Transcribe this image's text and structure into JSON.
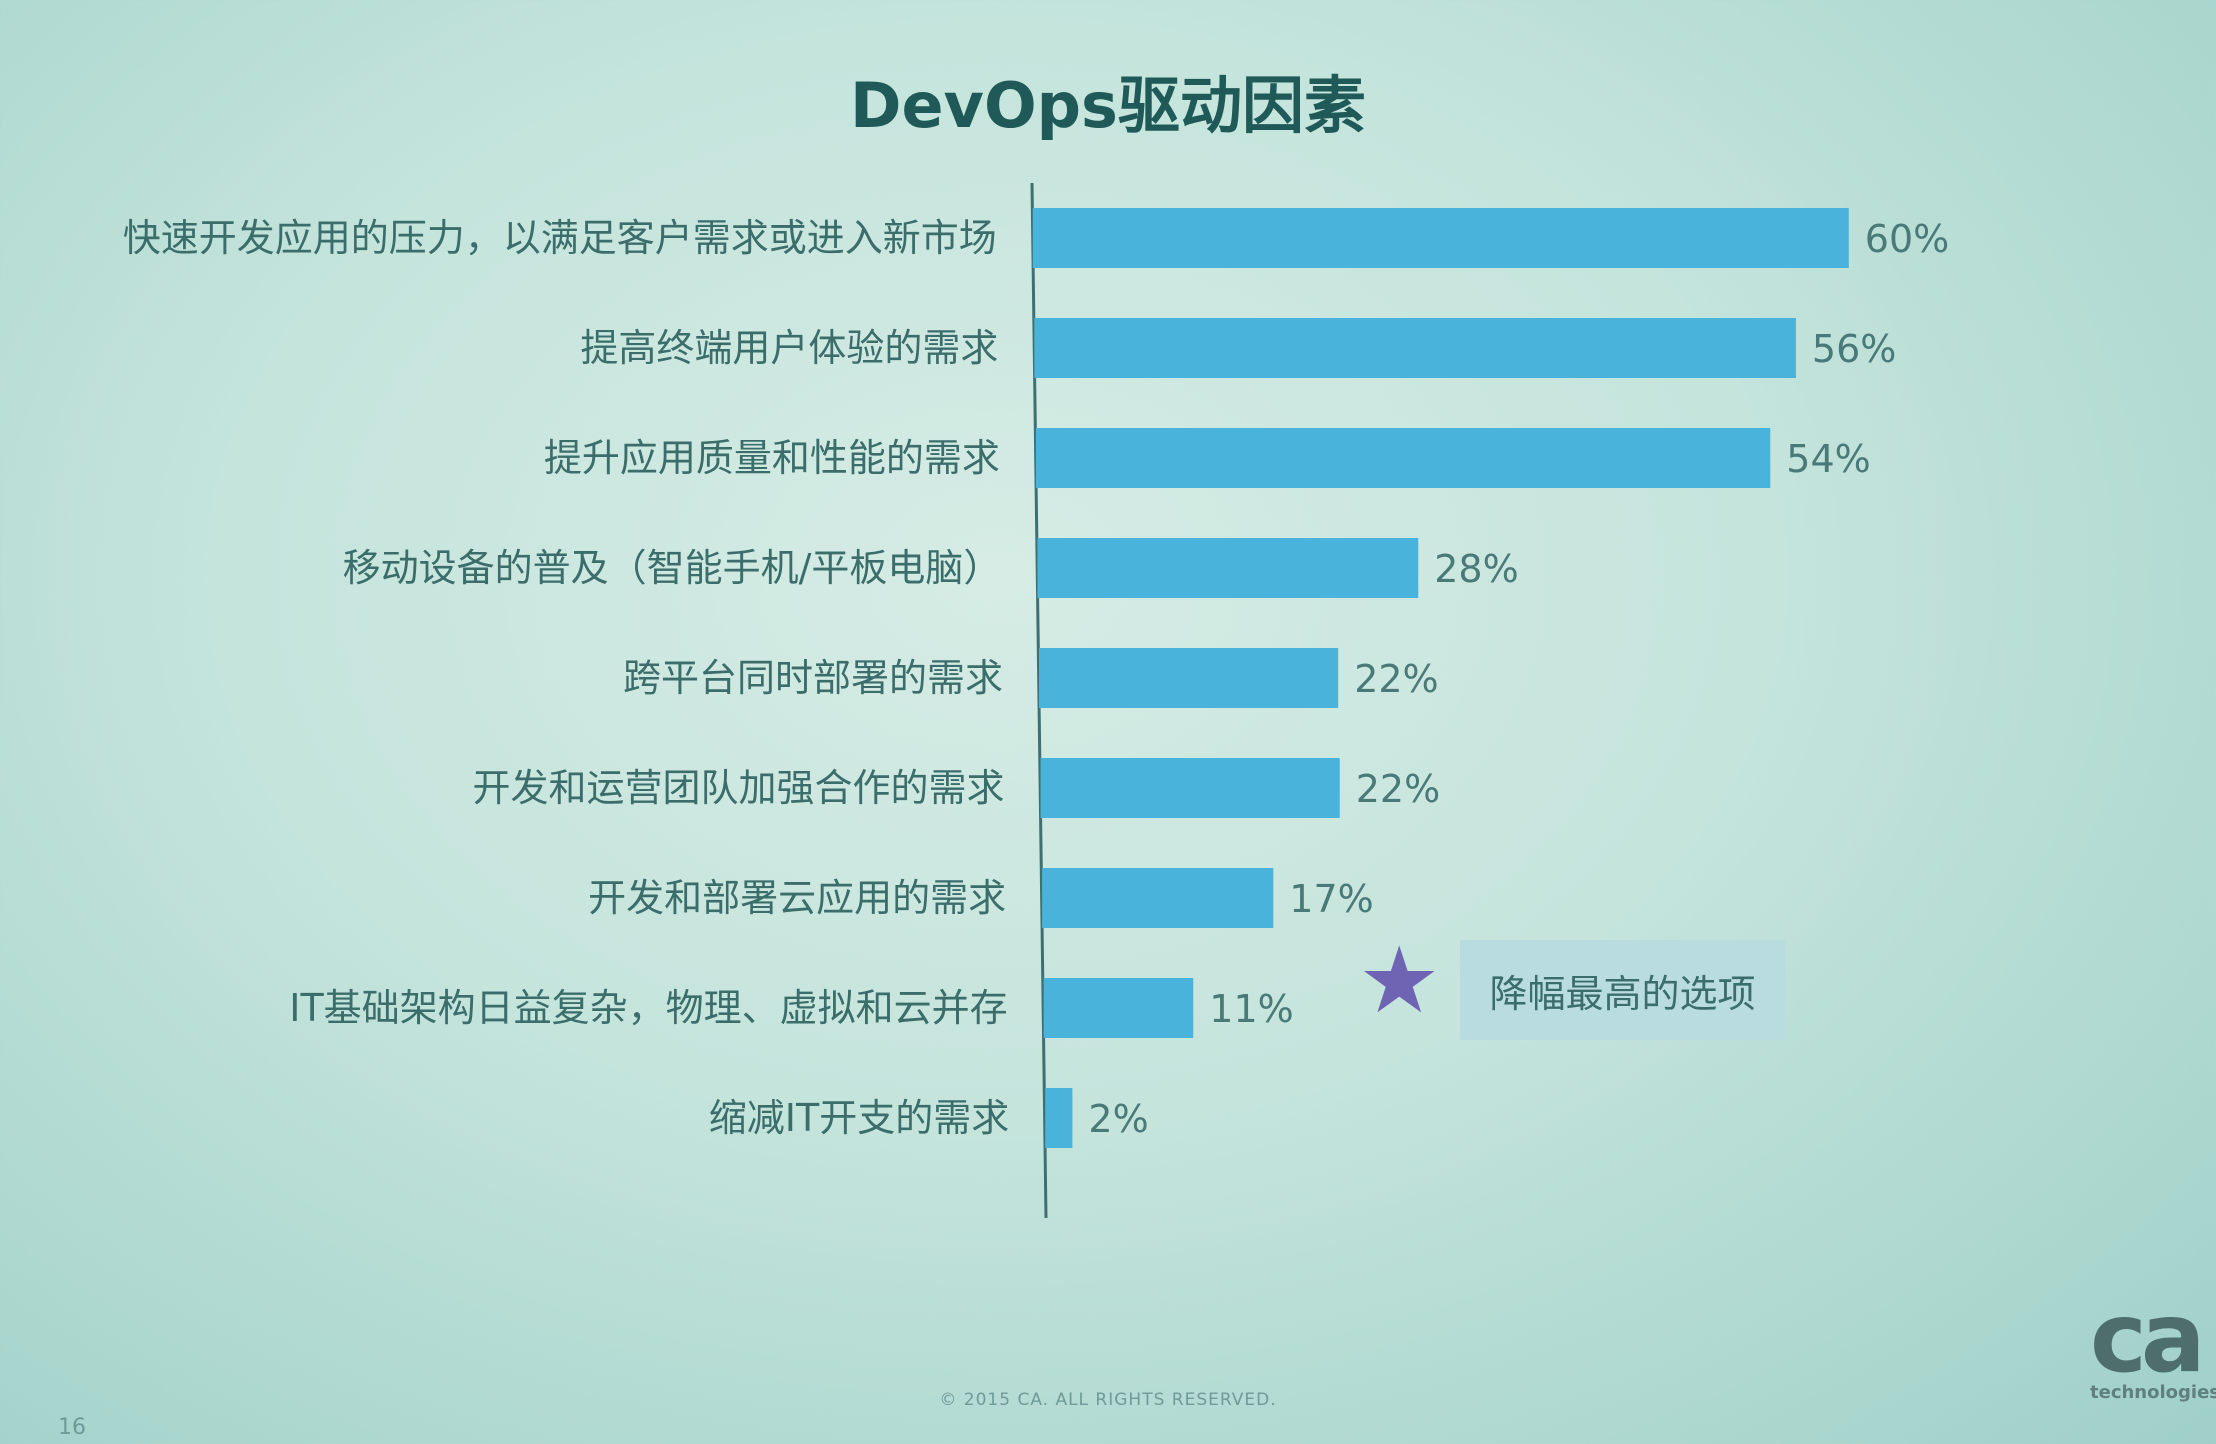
{
  "chart_data": {
    "type": "bar",
    "orientation": "horizontal",
    "title": "DevOps驱动因素",
    "categories": [
      "快速开发应用的压力，以满足客户需求或进入新市场",
      "提高终端用户体验的需求",
      "提升应用质量和性能的需求",
      "移动设备的普及（智能手机/平板电脑）",
      "跨平台同时部署的需求",
      "开发和运营团队加强合作的需求",
      "开发和部署云应用的需求",
      "IT基础架构日益复杂，物理、虚拟和云并存",
      "缩减IT开支的需求"
    ],
    "values": [
      60,
      56,
      54,
      28,
      22,
      22,
      17,
      11,
      2
    ],
    "value_labels": [
      "60%",
      "56%",
      "54%",
      "28%",
      "22%",
      "22%",
      "17%",
      "11%",
      "2%"
    ],
    "bar_color": "#4ab3dc",
    "axis_color": "#3d6f73",
    "grid": false,
    "annotation": {
      "category_index": 7,
      "icon": "star-icon",
      "text": "降幅最高的选项"
    }
  },
  "footer": {
    "copyright": "© 2015 CA. ALL RIGHTS RESERVED.",
    "page_number": "16"
  },
  "logo": {
    "mark": "ca",
    "sub": "technologies"
  }
}
